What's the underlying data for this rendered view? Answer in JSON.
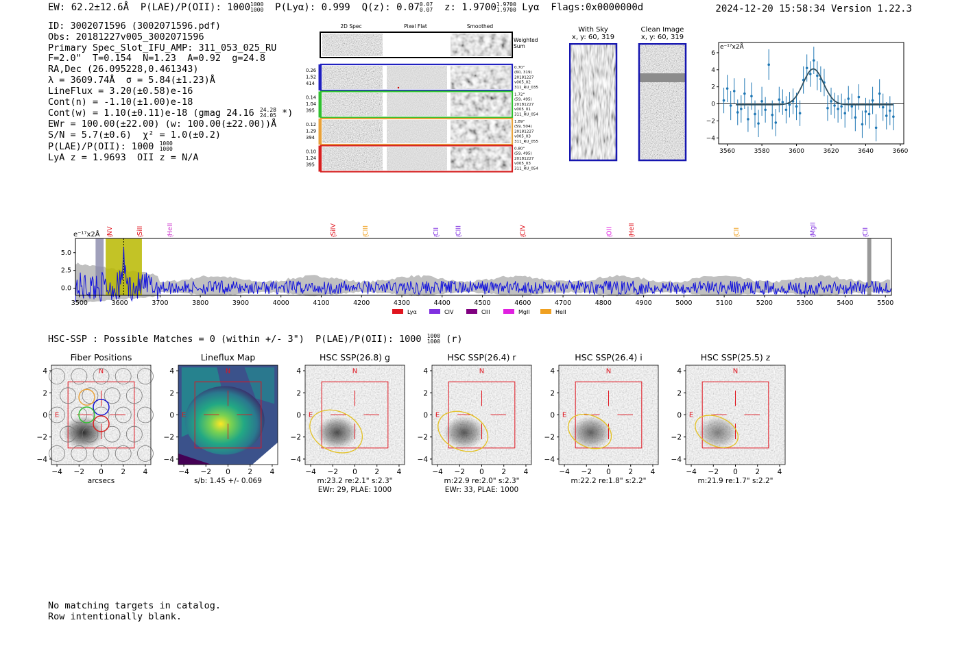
{
  "header": {
    "ew": "EW: 62.2±12.6Å",
    "plae_label": "P(LAE)/P(OII): 1000",
    "plae_frac": [
      "1000",
      "1000"
    ],
    "plya": "P(Lyα): 0.999",
    "qz_label": "Q(z): 0.07",
    "qz_frac": [
      "0.07",
      "0.07"
    ],
    "z_label": "z: 1.9700",
    "z_frac": [
      "1.9700",
      "1.9700"
    ],
    "line": "Lyα",
    "flags": "Flags:0x0000000d",
    "date": "2024-12-20 15:58:34",
    "version": "Version 1.22.3"
  },
  "info": {
    "id": "ID: 3002071596 (3002071596.pdf)",
    "obs": "Obs: 20181227v005_3002071596",
    "slot": "Primary Spec_Slot_IFU_AMP: 311_053_025_RU",
    "params": "F=2.0\"  T=0.154  N=1.23  A=0.92  g=24.8",
    "radec": "RA,Dec (26.095228,0.461343)",
    "lambda": "λ = 3609.74Å  σ = 5.84(±1.23)Å",
    "lineflux": "LineFlux = 3.20(±0.58)e-16",
    "contn": "Cont(n) = -1.10(±1.00)e-18",
    "contw_pre": "Cont(w) = 1.10(±0.11)e-18 (gmag 24.16",
    "contw_frac": [
      "24.28",
      "24.05"
    ],
    "contw_post": "*)",
    "ewr": "EWr = 100.00(±22.00) (w: 100.00(±22.00))Å",
    "sn": "S/N = 5.7(±0.6)  χ² = 1.0(±0.2)",
    "plae": "P(LAE)/P(OII): 1000",
    "plae_frac": [
      "1000",
      "1000"
    ],
    "lya_z": "LyA z = 1.9693  OII z = N/A"
  },
  "cutouts": {
    "col_titles": [
      "2D Spec",
      "Pixel Flat",
      "Smoothed"
    ],
    "weighted_sum": [
      "Weighted",
      "Sum"
    ],
    "rows": [
      {
        "left": [
          "0.26",
          "1.52",
          "414"
        ],
        "right": [
          "0.70\"",
          "(60, 319)",
          "20181227",
          "v005_02",
          "311_RU_035"
        ],
        "color": "#1f1fbf"
      },
      {
        "left": [
          "0.14",
          "1.04",
          "395"
        ],
        "right": [
          "1.72\"",
          "(59, 495)",
          "20181227",
          "v005_01",
          "311_RU_054"
        ],
        "color": "#2fbf2f"
      },
      {
        "left": [
          "0.12",
          "1.29",
          "394"
        ],
        "right": [
          "1.89\"",
          "(59, 504)",
          "20181227",
          "v005_03",
          "311_RU_055"
        ],
        "color": "#e8a13a"
      },
      {
        "left": [
          "0.10",
          "1.24",
          "395"
        ],
        "right": [
          "0.80\"",
          "(59, 495)",
          "20181227",
          "v005_03",
          "311_RU_054"
        ],
        "color": "#d62020"
      }
    ]
  },
  "sky_panels": {
    "with_sky": {
      "title": "With Sky",
      "coords": "x, y: 60, 319"
    },
    "clean": {
      "title": "Clean Image",
      "coords": "x, y: 60, 319"
    }
  },
  "colors": {
    "blue": "#1f77b4",
    "spec_blue": "#1010dd",
    "olive": "#b8b800",
    "gray_band": "#c0c0c0"
  },
  "chart_data": [
    {
      "type": "scatter",
      "name": "line-fit",
      "ylabel": "e⁻¹⁷x2Å",
      "xlim": [
        3555,
        3662
      ],
      "ylim": [
        -4.7,
        7.2
      ],
      "xticks": [
        3560,
        3580,
        3600,
        3620,
        3640,
        3660
      ],
      "yticks": [
        -4,
        -2,
        0,
        2,
        4,
        6
      ],
      "points": [
        {
          "x": 3558,
          "y": 0.4,
          "e": 1.5
        },
        {
          "x": 3560,
          "y": 1.8,
          "e": 1.6
        },
        {
          "x": 3562,
          "y": -0.2,
          "e": 1.7
        },
        {
          "x": 3564,
          "y": 1.5,
          "e": 1.5
        },
        {
          "x": 3566,
          "y": -1.0,
          "e": 1.5
        },
        {
          "x": 3568,
          "y": -0.6,
          "e": 1.6
        },
        {
          "x": 3570,
          "y": 1.2,
          "e": 1.8
        },
        {
          "x": 3572,
          "y": -1.8,
          "e": 1.5
        },
        {
          "x": 3574,
          "y": 0.9,
          "e": 1.6
        },
        {
          "x": 3576,
          "y": -1.2,
          "e": 1.6
        },
        {
          "x": 3578,
          "y": -2.3,
          "e": 1.6
        },
        {
          "x": 3580,
          "y": 0.3,
          "e": 1.7
        },
        {
          "x": 3582,
          "y": -0.7,
          "e": 1.5
        },
        {
          "x": 3584,
          "y": 4.6,
          "e": 1.8
        },
        {
          "x": 3586,
          "y": -1.3,
          "e": 1.7
        },
        {
          "x": 3588,
          "y": -2.2,
          "e": 1.6
        },
        {
          "x": 3590,
          "y": 0.5,
          "e": 1.5
        },
        {
          "x": 3592,
          "y": 0.2,
          "e": 1.5
        },
        {
          "x": 3594,
          "y": -0.7,
          "e": 1.6
        },
        {
          "x": 3596,
          "y": -0.1,
          "e": 1.5
        },
        {
          "x": 3598,
          "y": 0.3,
          "e": 1.5
        },
        {
          "x": 3600,
          "y": -0.3,
          "e": 1.6
        },
        {
          "x": 3602,
          "y": -1.1,
          "e": 1.5
        },
        {
          "x": 3604,
          "y": 2.8,
          "e": 1.6
        },
        {
          "x": 3606,
          "y": 4.2,
          "e": 1.6
        },
        {
          "x": 3608,
          "y": 3.5,
          "e": 1.5
        },
        {
          "x": 3610,
          "y": 5.1,
          "e": 1.6
        },
        {
          "x": 3612,
          "y": 3.3,
          "e": 1.7
        },
        {
          "x": 3614,
          "y": 2.9,
          "e": 1.5
        },
        {
          "x": 3616,
          "y": 2.5,
          "e": 1.6
        },
        {
          "x": 3618,
          "y": -0.5,
          "e": 1.5
        },
        {
          "x": 3620,
          "y": 0.3,
          "e": 1.6
        },
        {
          "x": 3622,
          "y": -0.2,
          "e": 1.5
        },
        {
          "x": 3624,
          "y": -0.6,
          "e": 1.6
        },
        {
          "x": 3626,
          "y": -0.3,
          "e": 1.5
        },
        {
          "x": 3628,
          "y": -1.1,
          "e": 1.7
        },
        {
          "x": 3630,
          "y": 0.6,
          "e": 1.5
        },
        {
          "x": 3632,
          "y": -0.3,
          "e": 1.5
        },
        {
          "x": 3634,
          "y": -1.6,
          "e": 1.6
        },
        {
          "x": 3636,
          "y": 0.8,
          "e": 1.5
        },
        {
          "x": 3638,
          "y": -2.4,
          "e": 1.6
        },
        {
          "x": 3640,
          "y": -0.9,
          "e": 1.6
        },
        {
          "x": 3642,
          "y": -1.2,
          "e": 1.7
        },
        {
          "x": 3644,
          "y": 0.4,
          "e": 1.6
        },
        {
          "x": 3646,
          "y": -2.8,
          "e": 1.6
        },
        {
          "x": 3648,
          "y": 1.2,
          "e": 1.7
        },
        {
          "x": 3650,
          "y": -0.4,
          "e": 1.6
        },
        {
          "x": 3652,
          "y": -1.4,
          "e": 1.6
        },
        {
          "x": 3654,
          "y": -0.8,
          "e": 1.7
        },
        {
          "x": 3656,
          "y": -1.5,
          "e": 1.6
        }
      ],
      "fit": {
        "center": 3609.74,
        "sigma": 5.84,
        "amp": 4.2,
        "base": -0.1
      }
    },
    {
      "type": "line",
      "name": "full-spectrum",
      "ylabel": "e⁻¹⁷x2Å",
      "xlim": [
        3490,
        5515
      ],
      "ylim": [
        -1.0,
        7.0
      ],
      "xticks": [
        3500,
        3600,
        3700,
        3800,
        3900,
        4000,
        4100,
        4200,
        4300,
        4400,
        4500,
        4600,
        4700,
        4800,
        4900,
        5000,
        5100,
        5200,
        5300,
        5400,
        5500
      ],
      "yticks": [
        0.0,
        2.5,
        5.0
      ],
      "ytick_labels": [
        "0.0",
        "2.5",
        "5.0"
      ],
      "line_markers": [
        {
          "x": 3575,
          "label": "NV",
          "color": "#e0141e"
        },
        {
          "x": 3650,
          "label": "SiII",
          "color": "#e0141e"
        },
        {
          "x": 3725,
          "label": "HeII",
          "color": "#d040d0"
        },
        {
          "x": 4130,
          "label": "SiIV",
          "color": "#e0141e"
        },
        {
          "x": 4210,
          "label": "CIII",
          "color": "#f0a020"
        },
        {
          "x": 4385,
          "label": "CII",
          "color": "#8030e0"
        },
        {
          "x": 4440,
          "label": "CIII",
          "color": "#8030e0"
        },
        {
          "x": 4600,
          "label": "CIV",
          "color": "#e0141e"
        },
        {
          "x": 4815,
          "label": "OII",
          "color": "#e020e0"
        },
        {
          "x": 4870,
          "label": "HeII",
          "color": "#e0141e"
        },
        {
          "x": 5130,
          "label": "CII",
          "color": "#f0a020"
        },
        {
          "x": 5320,
          "label": "MgII",
          "color": "#8030e0"
        },
        {
          "x": 5450,
          "label": "CII",
          "color": "#8030e0"
        }
      ],
      "legend": [
        {
          "label": "Lyα",
          "color": "#e0141e"
        },
        {
          "label": "CIV",
          "color": "#8030e0"
        },
        {
          "label": "CIII",
          "color": "#800080"
        },
        {
          "label": "MgII",
          "color": "#e020e0"
        },
        {
          "label": "HeII",
          "color": "#f0a020"
        }
      ],
      "highlight_band": [
        3565,
        3655
      ],
      "detect_line": 3609.74
    }
  ],
  "hsc_line": {
    "text": "HSC-SSP : Possible Matches = 0 (within +/- 3\")  P(LAE)/P(OII): 1000",
    "frac": [
      "1000",
      "1000"
    ],
    "suffix": "(r)"
  },
  "panels": [
    {
      "title": "Fiber Positions",
      "under": [
        "arcsecs"
      ],
      "kind": "fiber"
    },
    {
      "title": "Lineflux Map",
      "under": [
        "s/b: 1.45 +/- 0.069"
      ],
      "kind": "flux"
    },
    {
      "title": "HSC SSP(26.8) g",
      "under": [
        "m:23.2  re:2.1\"  s:2.3\"",
        "EWr: 29, PLAE: 1000"
      ],
      "kind": "img"
    },
    {
      "title": "HSC SSP(26.4) r",
      "under": [
        "m:22.9  re:2.0\"  s:2.3\"",
        "EWr: 33, PLAE: 1000"
      ],
      "kind": "img"
    },
    {
      "title": "HSC SSP(26.4) i",
      "under": [
        "m:22.2  re:1.8\"  s:2.2\""
      ],
      "kind": "img"
    },
    {
      "title": "HSC SSP(25.5) z",
      "under": [
        "m:21.9  re:1.7\"  s:2.2\""
      ],
      "kind": "img"
    }
  ],
  "panel_axes": {
    "ticks": [
      "−4",
      "−2",
      "0",
      "2",
      "4"
    ],
    "n_label": "N",
    "e_label": "E"
  },
  "footer": {
    "line1": "No matching targets in catalog.",
    "line2": "Row intentionally blank."
  }
}
